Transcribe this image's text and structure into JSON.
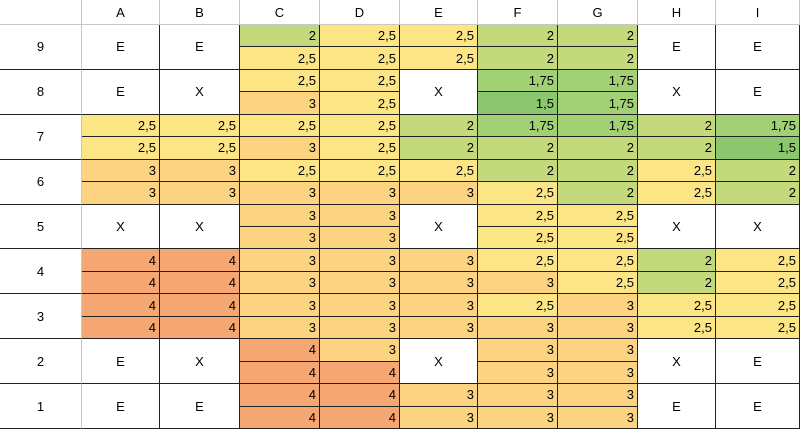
{
  "header": {
    "columns": [
      "A",
      "B",
      "C",
      "D",
      "E",
      "F",
      "G",
      "H",
      "I"
    ]
  },
  "palette": {
    "a": "#8cc76f",
    "b": "#a2d074",
    "c": "#c4d97b",
    "d": "#fbe585",
    "e": "#fcd381",
    "f": "#f4a773"
  },
  "rows": [
    {
      "label": "9",
      "cells": [
        {
          "text": "E"
        },
        {
          "text": "E"
        },
        {
          "values": [
            [
              "2",
              "c"
            ],
            [
              "2,5",
              "d"
            ]
          ]
        },
        {
          "values": [
            [
              "2,5",
              "d"
            ],
            [
              "2,5",
              "d"
            ]
          ]
        },
        {
          "values": [
            [
              "2,5",
              "d"
            ],
            [
              "2,5",
              "d"
            ]
          ]
        },
        {
          "values": [
            [
              "2",
              "c"
            ],
            [
              "2",
              "c"
            ]
          ]
        },
        {
          "values": [
            [
              "2",
              "c"
            ],
            [
              "2",
              "c"
            ]
          ]
        },
        {
          "text": "E"
        },
        {
          "text": "E"
        }
      ]
    },
    {
      "label": "8",
      "cells": [
        {
          "text": "E"
        },
        {
          "text": "X"
        },
        {
          "values": [
            [
              "2,5",
              "d"
            ],
            [
              "3",
              "e"
            ]
          ]
        },
        {
          "values": [
            [
              "2,5",
              "d"
            ],
            [
              "2,5",
              "d"
            ]
          ]
        },
        {
          "text": "X"
        },
        {
          "values": [
            [
              "1,75",
              "b"
            ],
            [
              "1,5",
              "a"
            ]
          ]
        },
        {
          "values": [
            [
              "1,75",
              "b"
            ],
            [
              "1,75",
              "b"
            ]
          ]
        },
        {
          "text": "X"
        },
        {
          "text": "E"
        }
      ]
    },
    {
      "label": "7",
      "cells": [
        {
          "values": [
            [
              "2,5",
              "d"
            ],
            [
              "2,5",
              "d"
            ]
          ]
        },
        {
          "values": [
            [
              "2,5",
              "d"
            ],
            [
              "2,5",
              "d"
            ]
          ]
        },
        {
          "values": [
            [
              "2,5",
              "d"
            ],
            [
              "3",
              "e"
            ]
          ]
        },
        {
          "values": [
            [
              "2,5",
              "d"
            ],
            [
              "2,5",
              "d"
            ]
          ]
        },
        {
          "values": [
            [
              "2",
              "c"
            ],
            [
              "2",
              "c"
            ]
          ]
        },
        {
          "values": [
            [
              "1,75",
              "b"
            ],
            [
              "2",
              "c"
            ]
          ]
        },
        {
          "values": [
            [
              "1,75",
              "b"
            ],
            [
              "2",
              "c"
            ]
          ]
        },
        {
          "values": [
            [
              "2",
              "c"
            ],
            [
              "2",
              "c"
            ]
          ]
        },
        {
          "values": [
            [
              "1,75",
              "b"
            ],
            [
              "1,5",
              "a"
            ]
          ]
        }
      ]
    },
    {
      "label": "6",
      "cells": [
        {
          "values": [
            [
              "3",
              "e"
            ],
            [
              "3",
              "e"
            ]
          ]
        },
        {
          "values": [
            [
              "3",
              "e"
            ],
            [
              "3",
              "e"
            ]
          ]
        },
        {
          "values": [
            [
              "2,5",
              "d"
            ],
            [
              "3",
              "e"
            ]
          ]
        },
        {
          "values": [
            [
              "2,5",
              "d"
            ],
            [
              "3",
              "e"
            ]
          ]
        },
        {
          "values": [
            [
              "2,5",
              "d"
            ],
            [
              "3",
              "e"
            ]
          ]
        },
        {
          "values": [
            [
              "2",
              "c"
            ],
            [
              "2,5",
              "d"
            ]
          ]
        },
        {
          "values": [
            [
              "2",
              "c"
            ],
            [
              "2",
              "c"
            ]
          ]
        },
        {
          "values": [
            [
              "2,5",
              "d"
            ],
            [
              "2,5",
              "d"
            ]
          ]
        },
        {
          "values": [
            [
              "2",
              "c"
            ],
            [
              "2",
              "c"
            ]
          ]
        }
      ]
    },
    {
      "label": "5",
      "cells": [
        {
          "text": "X"
        },
        {
          "text": "X"
        },
        {
          "values": [
            [
              "3",
              "e"
            ],
            [
              "3",
              "e"
            ]
          ]
        },
        {
          "values": [
            [
              "3",
              "e"
            ],
            [
              "3",
              "e"
            ]
          ]
        },
        {
          "text": "X"
        },
        {
          "values": [
            [
              "2,5",
              "d"
            ],
            [
              "2,5",
              "d"
            ]
          ]
        },
        {
          "values": [
            [
              "2,5",
              "d"
            ],
            [
              "2,5",
              "d"
            ]
          ]
        },
        {
          "text": "X"
        },
        {
          "text": "X"
        }
      ]
    },
    {
      "label": "4",
      "cells": [
        {
          "values": [
            [
              "4",
              "f"
            ],
            [
              "4",
              "f"
            ]
          ]
        },
        {
          "values": [
            [
              "4",
              "f"
            ],
            [
              "4",
              "f"
            ]
          ]
        },
        {
          "values": [
            [
              "3",
              "e"
            ],
            [
              "3",
              "e"
            ]
          ]
        },
        {
          "values": [
            [
              "3",
              "e"
            ],
            [
              "3",
              "e"
            ]
          ]
        },
        {
          "values": [
            [
              "3",
              "e"
            ],
            [
              "3",
              "e"
            ]
          ]
        },
        {
          "values": [
            [
              "2,5",
              "d"
            ],
            [
              "3",
              "e"
            ]
          ]
        },
        {
          "values": [
            [
              "2,5",
              "d"
            ],
            [
              "2,5",
              "d"
            ]
          ]
        },
        {
          "values": [
            [
              "2",
              "c"
            ],
            [
              "2",
              "c"
            ]
          ]
        },
        {
          "values": [
            [
              "2,5",
              "d"
            ],
            [
              "2,5",
              "d"
            ]
          ]
        }
      ]
    },
    {
      "label": "3",
      "cells": [
        {
          "values": [
            [
              "4",
              "f"
            ],
            [
              "4",
              "f"
            ]
          ]
        },
        {
          "values": [
            [
              "4",
              "f"
            ],
            [
              "4",
              "f"
            ]
          ]
        },
        {
          "values": [
            [
              "3",
              "e"
            ],
            [
              "3",
              "e"
            ]
          ]
        },
        {
          "values": [
            [
              "3",
              "e"
            ],
            [
              "3",
              "e"
            ]
          ]
        },
        {
          "values": [
            [
              "3",
              "e"
            ],
            [
              "3",
              "e"
            ]
          ]
        },
        {
          "values": [
            [
              "2,5",
              "d"
            ],
            [
              "3",
              "e"
            ]
          ]
        },
        {
          "values": [
            [
              "3",
              "e"
            ],
            [
              "3",
              "e"
            ]
          ]
        },
        {
          "values": [
            [
              "2,5",
              "d"
            ],
            [
              "2,5",
              "d"
            ]
          ]
        },
        {
          "values": [
            [
              "2,5",
              "d"
            ],
            [
              "2,5",
              "d"
            ]
          ]
        }
      ]
    },
    {
      "label": "2",
      "cells": [
        {
          "text": "E"
        },
        {
          "text": "X"
        },
        {
          "values": [
            [
              "4",
              "f"
            ],
            [
              "4",
              "f"
            ]
          ]
        },
        {
          "values": [
            [
              "3",
              "e"
            ],
            [
              "4",
              "f"
            ]
          ]
        },
        {
          "text": "X"
        },
        {
          "values": [
            [
              "3",
              "e"
            ],
            [
              "3",
              "e"
            ]
          ]
        },
        {
          "values": [
            [
              "3",
              "e"
            ],
            [
              "3",
              "e"
            ]
          ]
        },
        {
          "text": "X"
        },
        {
          "text": "E"
        }
      ]
    },
    {
      "label": "1",
      "cells": [
        {
          "text": "E"
        },
        {
          "text": "E"
        },
        {
          "values": [
            [
              "4",
              "f"
            ],
            [
              "4",
              "f"
            ]
          ]
        },
        {
          "values": [
            [
              "4",
              "f"
            ],
            [
              "4",
              "f"
            ]
          ]
        },
        {
          "values": [
            [
              "3",
              "e"
            ],
            [
              "3",
              "e"
            ]
          ]
        },
        {
          "values": [
            [
              "3",
              "e"
            ],
            [
              "3",
              "e"
            ]
          ]
        },
        {
          "values": [
            [
              "3",
              "e"
            ],
            [
              "3",
              "e"
            ]
          ]
        },
        {
          "text": "E"
        },
        {
          "text": "E"
        }
      ]
    }
  ]
}
